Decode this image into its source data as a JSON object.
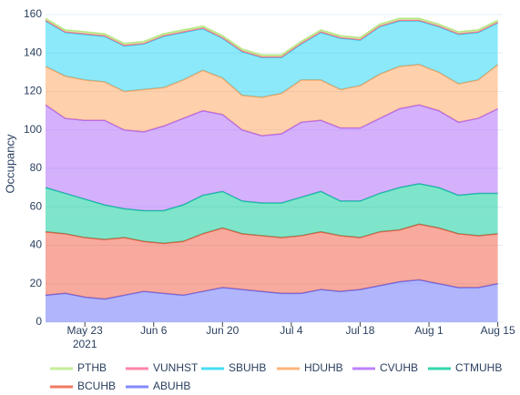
{
  "chart_data": {
    "type": "stacked_area",
    "y_label": "Occupancy",
    "x": [
      "2021-05-15",
      "2021-05-19",
      "2021-05-23",
      "2021-05-27",
      "2021-05-31",
      "2021-06-04",
      "2021-06-08",
      "2021-06-12",
      "2021-06-16",
      "2021-06-20",
      "2021-06-24",
      "2021-06-28",
      "2021-07-02",
      "2021-07-06",
      "2021-07-10",
      "2021-07-14",
      "2021-07-18",
      "2021-07-22",
      "2021-07-26",
      "2021-07-30",
      "2021-08-03",
      "2021-08-07",
      "2021-08-11",
      "2021-08-15"
    ],
    "xlim": [
      "2021-05-15",
      "2021-08-16"
    ],
    "xticks": [
      {
        "value": "2021-05-23",
        "label": "May 23\n2021"
      },
      {
        "value": "2021-06-06",
        "label": "Jun 6"
      },
      {
        "value": "2021-06-20",
        "label": "Jun 20"
      },
      {
        "value": "2021-07-04",
        "label": "Jul 4"
      },
      {
        "value": "2021-07-18",
        "label": "Jul 18"
      },
      {
        "value": "2021-08-01",
        "label": "Aug 1"
      },
      {
        "value": "2021-08-15",
        "label": "Aug 15"
      }
    ],
    "ylim": [
      0,
      160
    ],
    "yticks": [
      0,
      20,
      40,
      60,
      80,
      100,
      120,
      140,
      160
    ],
    "grid": true,
    "legend": "bottom",
    "series": [
      {
        "name": "ABUHB",
        "color": "#636efa",
        "values": [
          14,
          15,
          13,
          12,
          14,
          16,
          15,
          14,
          16,
          18,
          17,
          16,
          15,
          15,
          17,
          16,
          17,
          19,
          21,
          22,
          20,
          18,
          18,
          20
        ]
      },
      {
        "name": "BCUHB",
        "color": "#ef553b",
        "values": [
          33,
          31,
          31,
          31,
          30,
          26,
          26,
          28,
          30,
          31,
          29,
          29,
          29,
          30,
          30,
          29,
          27,
          28,
          27,
          29,
          29,
          28,
          27,
          26
        ]
      },
      {
        "name": "CTMUHB",
        "color": "#00cc96",
        "values": [
          23,
          21,
          20,
          18,
          15,
          16,
          17,
          19,
          20,
          19,
          17,
          17,
          18,
          20,
          21,
          18,
          19,
          20,
          22,
          21,
          21,
          20,
          22,
          21
        ]
      },
      {
        "name": "CVUHB",
        "color": "#ab63fa",
        "values": [
          43,
          39,
          41,
          44,
          41,
          41,
          44,
          45,
          44,
          40,
          37,
          35,
          36,
          39,
          37,
          38,
          38,
          39,
          41,
          41,
          40,
          38,
          39,
          44
        ]
      },
      {
        "name": "HDUHB",
        "color": "#ffa15a",
        "values": [
          20,
          22,
          21,
          20,
          20,
          22,
          20,
          20,
          21,
          19,
          18,
          20,
          21,
          22,
          21,
          20,
          22,
          23,
          22,
          21,
          20,
          20,
          20,
          23
        ]
      },
      {
        "name": "SBUHB",
        "color": "#19d3f3",
        "values": [
          23.7,
          22.7,
          23.7,
          23.7,
          23.7,
          23.7,
          26.7,
          24.7,
          21.7,
          20.7,
          22.7,
          20.7,
          18.7,
          18.7,
          24.7,
          26.7,
          23.7,
          24.7,
          23.7,
          22.7,
          23.7,
          25.7,
          24.7,
          21.7
        ]
      },
      {
        "name": "VUNHST",
        "color": "#ff6692",
        "values": [
          0.3,
          0.3,
          0.3,
          0.3,
          0.3,
          0.3,
          0.3,
          0.3,
          0.3,
          0.3,
          0.3,
          0.3,
          0.3,
          0.3,
          0.3,
          0.3,
          0.3,
          0.3,
          0.3,
          0.3,
          0.3,
          0.3,
          0.3,
          0.3
        ]
      },
      {
        "name": "PTHB",
        "color": "#b6e880",
        "values": [
          1,
          1,
          1,
          1,
          1,
          1,
          1,
          1,
          1,
          1,
          1,
          1,
          1,
          1,
          1,
          1,
          1,
          1,
          1,
          1,
          1,
          1,
          1,
          1
        ]
      }
    ]
  }
}
